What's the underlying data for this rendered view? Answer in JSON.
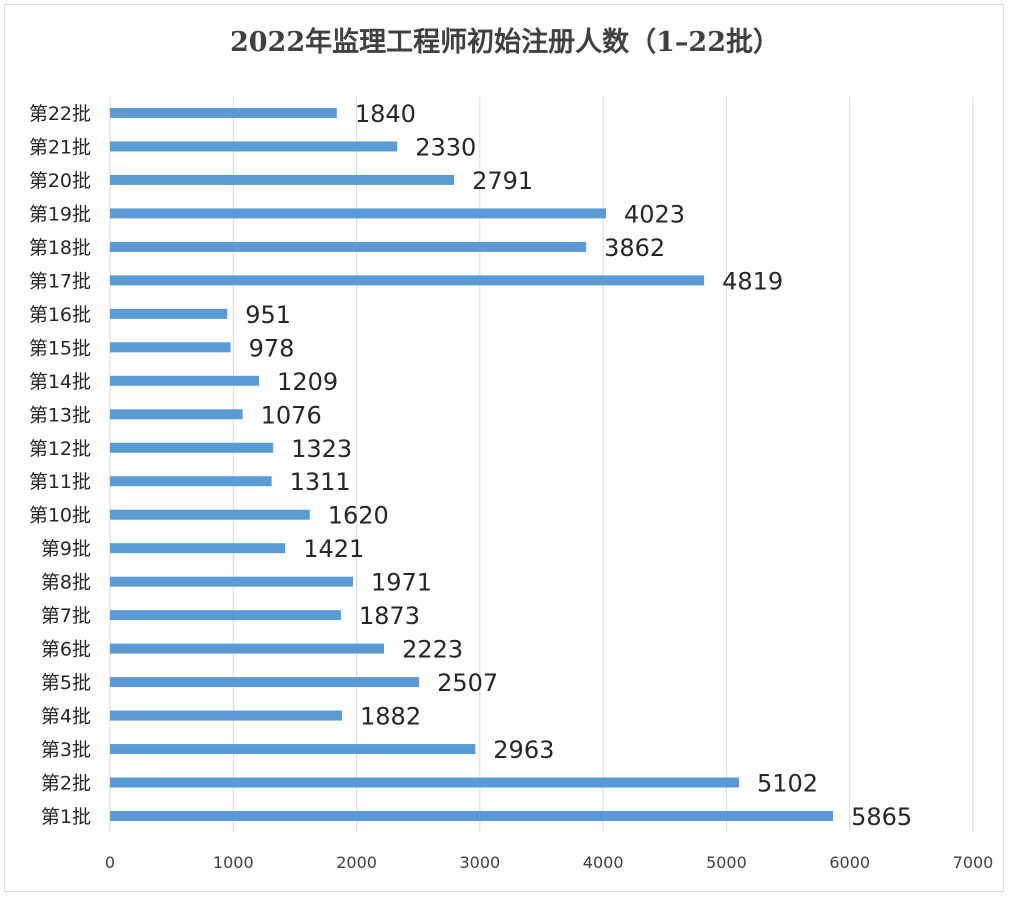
{
  "chart_data": {
    "type": "bar",
    "orientation": "horizontal",
    "title": "2022年监理工程师初始注册人数（1–22批）",
    "categories": [
      "第1批",
      "第2批",
      "第3批",
      "第4批",
      "第5批",
      "第6批",
      "第7批",
      "第8批",
      "第9批",
      "第10批",
      "第11批",
      "第12批",
      "第13批",
      "第14批",
      "第15批",
      "第16批",
      "第17批",
      "第18批",
      "第19批",
      "第20批",
      "第21批",
      "第22批"
    ],
    "values": [
      5865,
      5102,
      2963,
      1882,
      2507,
      2223,
      1873,
      1971,
      1421,
      1620,
      1311,
      1323,
      1076,
      1209,
      978,
      951,
      4819,
      3862,
      4023,
      2791,
      2330,
      1840
    ],
    "xlim": [
      0,
      7000
    ],
    "xticks": [
      "0",
      "1000",
      "2000",
      "3000",
      "4000",
      "5000",
      "6000",
      "7000"
    ],
    "grid": true,
    "data_labels": true,
    "bar_color": "#5b9bd5",
    "grid_color": "#d9d9d9"
  }
}
